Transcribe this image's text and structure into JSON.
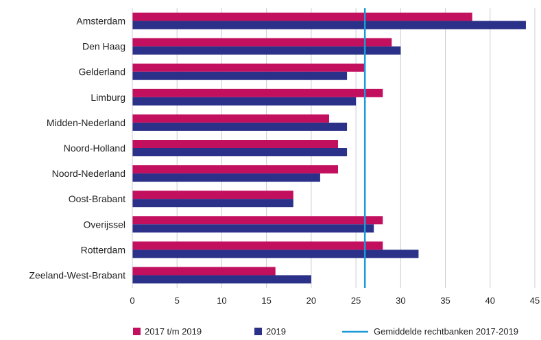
{
  "chart_data": {
    "type": "bar",
    "orientation": "horizontal",
    "categories": [
      "Amsterdam",
      "Den Haag",
      "Gelderland",
      "Limburg",
      "Midden-Nederland",
      "Noord-Holland",
      "Noord-Nederland",
      "Oost-Brabant",
      "Overijssel",
      "Rotterdam",
      "Zeeland-West-Brabant"
    ],
    "series": [
      {
        "name": "2017 t/m 2019",
        "color": "#c2105f",
        "values": [
          38,
          29,
          26,
          28,
          22,
          23,
          23,
          18,
          28,
          28,
          16
        ]
      },
      {
        "name": "2019",
        "color": "#2b3188",
        "values": [
          44,
          30,
          24,
          25,
          24,
          24,
          21,
          18,
          27,
          32,
          20
        ]
      }
    ],
    "reference_line": {
      "name": "Gemiddelde rechtbanken 2017-2019",
      "value": 26,
      "color": "#1a9bd7"
    },
    "xlim": [
      0,
      45
    ],
    "xticks": [
      0,
      5,
      10,
      15,
      20,
      25,
      30,
      35,
      40,
      45
    ],
    "grid": "vertical",
    "legend_position": "bottom",
    "title": "",
    "xlabel": "",
    "ylabel": ""
  }
}
